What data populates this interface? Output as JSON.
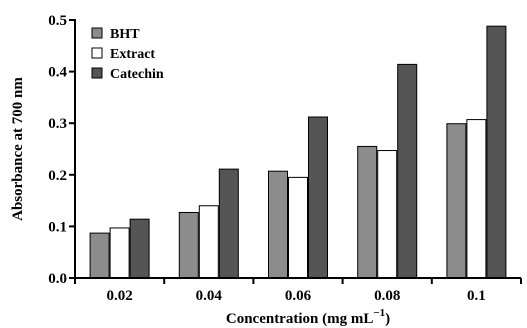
{
  "chart_data": {
    "type": "bar",
    "title": "",
    "xlabel": "Concentration (mg mL",
    "xlabel_sup": "−1",
    "xlabel_close": ")",
    "ylabel": "Absorbance at 700 nm",
    "categories": [
      "0.02",
      "0.04",
      "0.06",
      "0.08",
      "0.1"
    ],
    "ylim": [
      0,
      0.5
    ],
    "yticks": [
      "0.0",
      "0.1",
      "0.2",
      "0.3",
      "0.4",
      "0.5"
    ],
    "ytick_values": [
      0,
      0.1,
      0.2,
      0.3,
      0.4,
      0.5
    ],
    "legend_position": "top-left",
    "grid": false,
    "series": [
      {
        "name": "BHT",
        "color": "#8c8c8c",
        "values": [
          0.087,
          0.127,
          0.207,
          0.255,
          0.299
        ]
      },
      {
        "name": "Extract",
        "color": "#ffffff",
        "values": [
          0.097,
          0.14,
          0.195,
          0.247,
          0.307
        ]
      },
      {
        "name": "Catechin",
        "color": "#555555",
        "values": [
          0.114,
          0.211,
          0.312,
          0.414,
          0.488
        ]
      }
    ]
  }
}
